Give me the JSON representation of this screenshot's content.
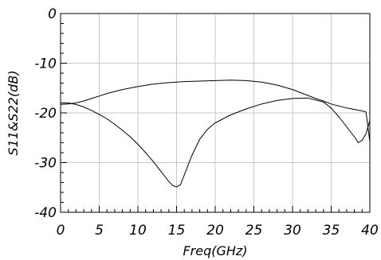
{
  "chart_data": {
    "type": "line",
    "xlabel": "Freq(GHz)",
    "ylabel": "S11&S22(dB)",
    "xlim": [
      0,
      40
    ],
    "ylim": [
      -40,
      0
    ],
    "x_ticks": [
      "0",
      "5",
      "10",
      "15",
      "20",
      "25",
      "30",
      "35",
      "40"
    ],
    "y_ticks": [
      "0",
      "-10",
      "-20",
      "-30",
      "-40"
    ],
    "grid": true,
    "line_color": "#000000",
    "grid_color": "#c8c8c8",
    "series": [
      {
        "x": [
          0,
          1,
          2,
          3,
          4,
          5,
          6,
          7,
          8,
          9,
          10,
          11,
          12,
          13,
          13.5,
          14,
          14.5,
          15,
          15.5,
          16,
          17,
          18,
          19,
          20,
          22,
          24,
          26,
          28,
          30,
          32,
          34,
          35,
          36,
          37,
          38,
          38.5,
          39,
          39.5,
          40
        ],
        "y": [
          -18.0,
          -18.0,
          -18.3,
          -18.8,
          -19.5,
          -20.3,
          -21.2,
          -22.3,
          -23.5,
          -24.8,
          -26.3,
          -28.0,
          -29.8,
          -31.8,
          -32.8,
          -33.8,
          -34.6,
          -34.9,
          -34.5,
          -32.5,
          -28.5,
          -25.3,
          -23.3,
          -22.0,
          -20.4,
          -19.2,
          -18.2,
          -17.5,
          -17.1,
          -17.0,
          -17.8,
          -19.0,
          -20.8,
          -22.8,
          -24.8,
          -26.0,
          -25.5,
          -24.2,
          -21.5
        ]
      },
      {
        "x": [
          0,
          1,
          2,
          3,
          4,
          5,
          6,
          8,
          10,
          12,
          14,
          16,
          18,
          20,
          22,
          24,
          26,
          28,
          30,
          31,
          32,
          33,
          34,
          35,
          36,
          37,
          38,
          39,
          39.5,
          40
        ],
        "y": [
          -18.3,
          -18.2,
          -18.0,
          -17.6,
          -17.1,
          -16.6,
          -16.1,
          -15.3,
          -14.7,
          -14.2,
          -13.9,
          -13.7,
          -13.6,
          -13.5,
          -13.4,
          -13.5,
          -13.8,
          -14.4,
          -15.3,
          -15.9,
          -16.5,
          -17.1,
          -17.6,
          -18.2,
          -18.6,
          -19.0,
          -19.3,
          -19.6,
          -19.8,
          -25.8
        ]
      }
    ]
  }
}
